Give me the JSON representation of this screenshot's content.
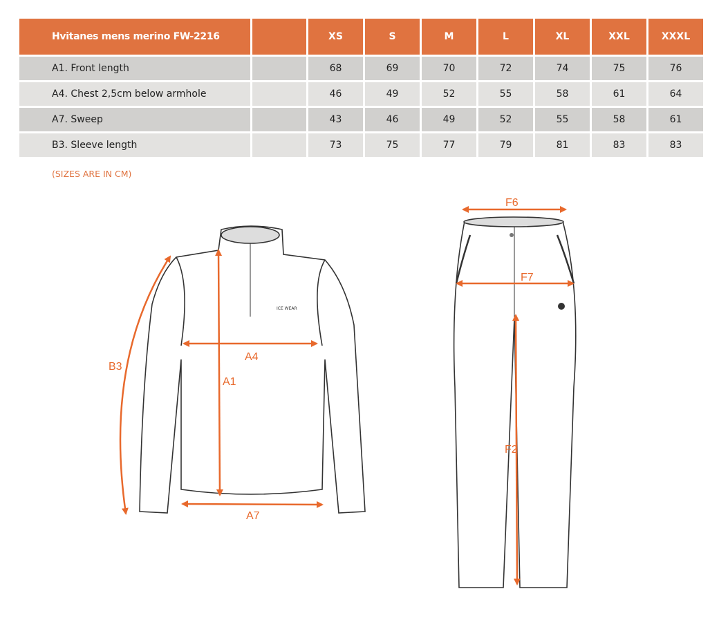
{
  "table": {
    "title": "Hvitanes mens merino FW-2216",
    "sizes": [
      "XS",
      "S",
      "M",
      "L",
      "XL",
      "XXL",
      "XXXL"
    ],
    "rows": [
      {
        "label": "A1. Front length",
        "values": [
          "68",
          "69",
          "70",
          "72",
          "74",
          "75",
          "76"
        ]
      },
      {
        "label": "A4. Chest 2,5cm below armhole",
        "values": [
          "46",
          "49",
          "52",
          "55",
          "58",
          "61",
          "64"
        ]
      },
      {
        "label": "A7. Sweep",
        "values": [
          "43",
          "46",
          "49",
          "52",
          "55",
          "58",
          "61"
        ]
      },
      {
        "label": "B3. Sleeve length",
        "values": [
          "73",
          "75",
          "77",
          "79",
          "81",
          "83",
          "83"
        ]
      }
    ]
  },
  "note": "(SIZES ARE IN CM)",
  "diagram": {
    "top_labels": {
      "a1": "A1",
      "a4": "A4",
      "a7": "A7",
      "b3": "B3"
    },
    "logo_text": "ICE WEAR",
    "pants_labels": {
      "f6": "F6",
      "f7": "F7",
      "f2": "F2"
    },
    "accent_color": "#e8692c",
    "header_color": "#e07340"
  }
}
